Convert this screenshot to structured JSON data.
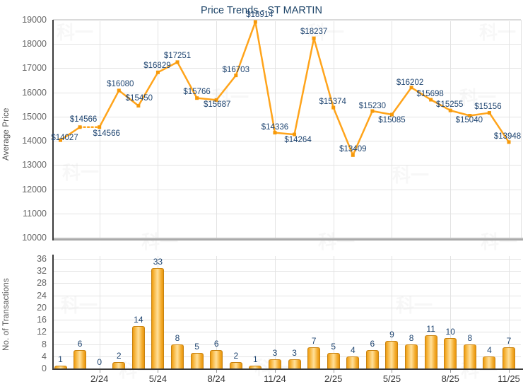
{
  "title": "Price Trends - ST MARTIN",
  "watermark_text": "科一",
  "colors": {
    "title": "#1d4468",
    "line": "#ffa41b",
    "marker": "#f6990a",
    "point_label": "#1f4571",
    "bar_fill": "#f9ae3b",
    "bar_border": "#c8820f",
    "axis": "#3a3a3a",
    "grid": "#e3e3e3",
    "y_tick_text": "#666666",
    "x_tick_text": "#333333"
  },
  "chart_data": [
    {
      "type": "line",
      "title": "Price Trends - ST MARTIN",
      "ylabel": "Average Price",
      "ylim": [
        10000,
        19000
      ],
      "y_tick_labels": [
        "19000",
        "18000",
        "17000",
        "16000",
        "15000",
        "14000",
        "13000",
        "12000",
        "11000",
        "10000"
      ],
      "values": [
        14027,
        14566,
        14566,
        16080,
        15450,
        16829,
        17251,
        15766,
        15687,
        16703,
        18914,
        14336,
        14264,
        18237,
        15374,
        13409,
        15230,
        15085,
        16202,
        15698,
        15255,
        15040,
        15156,
        13948
      ],
      "point_labels": [
        "$14027",
        "$14566",
        "$14566",
        "$16080",
        "$15450",
        "$16829",
        "$17251",
        "$15766",
        "$15687",
        "$16703",
        "$18914",
        "$14336",
        "$14264",
        "$18237",
        "$15374",
        "$13409",
        "$15230",
        "$15085",
        "$16202",
        "$15698",
        "$15255",
        "$15040",
        "$15156",
        "$13948"
      ],
      "dotted_segments": [
        [
          1,
          2
        ]
      ],
      "grid": true,
      "legend": "none"
    },
    {
      "type": "bar",
      "ylabel": "No. of Transactions",
      "ylim": [
        0,
        36
      ],
      "y_tick_labels": [
        "36",
        "32",
        "28",
        "24",
        "20",
        "16",
        "12",
        "8",
        "4",
        "0"
      ],
      "values": [
        1,
        6,
        0,
        2,
        14,
        33,
        8,
        5,
        6,
        2,
        1,
        3,
        3,
        7,
        5,
        4,
        6,
        9,
        8,
        11,
        10,
        8,
        4,
        7
      ],
      "bar_labels": [
        "1",
        "6",
        "0",
        "2",
        "14",
        "33",
        "8",
        "5",
        "6",
        "2",
        "1",
        "3",
        "3",
        "7",
        "5",
        "4",
        "6",
        "9",
        "8",
        "11",
        "10",
        "8",
        "4",
        "7"
      ],
      "x_tick_labels": [
        "2/24",
        "5/24",
        "8/24",
        "11/24",
        "2/25",
        "5/25",
        "8/25",
        "11/25"
      ],
      "x_tick_indices": [
        2,
        5,
        8,
        11,
        14,
        17,
        20,
        23
      ],
      "grid": true,
      "legend": "none"
    }
  ]
}
